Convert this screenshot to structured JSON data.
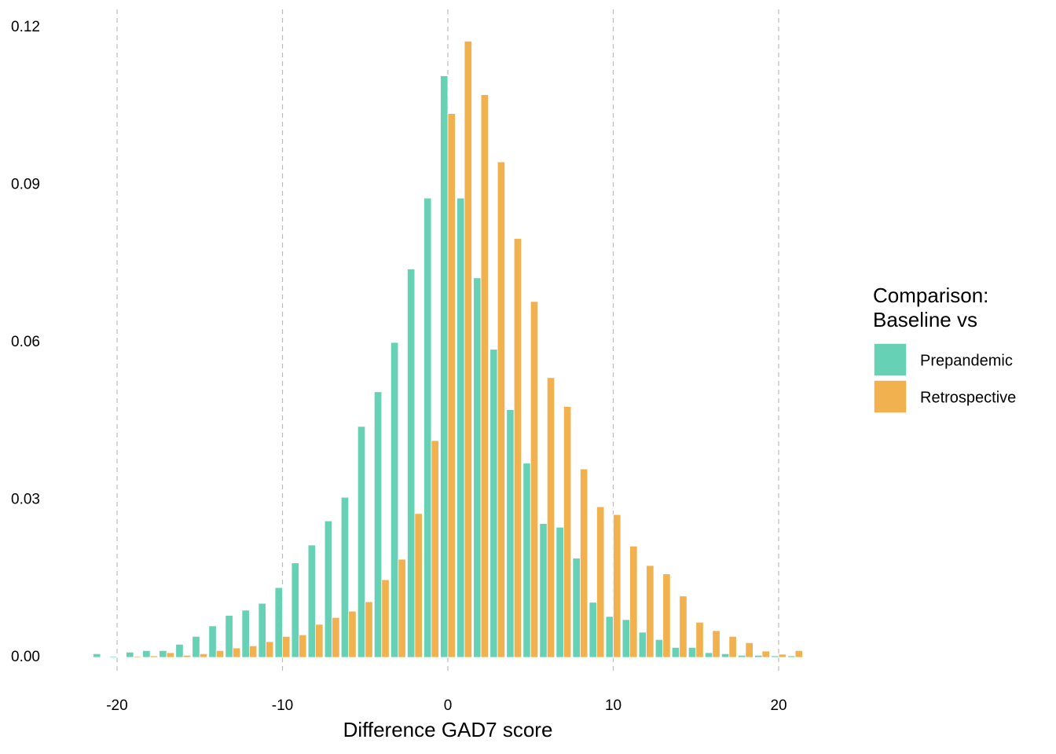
{
  "chart_data": {
    "type": "bar",
    "x_label": "Difference GAD7 score",
    "legend_title": [
      "Comparison:",
      "Baseline vs"
    ],
    "legend_position": "right",
    "x": [
      -21,
      -20,
      -19,
      -18,
      -17,
      -16,
      -15,
      -14,
      -13,
      -12,
      -11,
      -10,
      -9,
      -8,
      -7,
      -6,
      -5,
      -4,
      -3,
      -2,
      -1,
      0,
      1,
      2,
      3,
      4,
      5,
      6,
      7,
      8,
      9,
      10,
      11,
      12,
      13,
      14,
      15,
      16,
      17,
      18,
      19,
      20,
      21
    ],
    "series": [
      {
        "name": "Prepandemic",
        "color": "#66d1b5",
        "values": [
          0.0007,
          0.0002,
          0.001,
          0.0013,
          0.0013,
          0.0025,
          0.004,
          0.006,
          0.008,
          0.009,
          0.0103,
          0.0133,
          0.018,
          0.0214,
          0.026,
          0.0305,
          0.044,
          0.0506,
          0.06,
          0.074,
          0.0875,
          0.1108,
          0.0875,
          0.0723,
          0.0587,
          0.0472,
          0.037,
          0.0255,
          0.0248,
          0.0189,
          0.0105,
          0.0078,
          0.0072,
          0.0048,
          0.0034,
          0.0019,
          0.0019,
          0.0009,
          0.0007,
          0.0004,
          0.0004,
          0.0003,
          0.0003
        ]
      },
      {
        "name": "Retrospective",
        "color": "#f0b14e",
        "values": [
          0.0001,
          0.0001,
          0.0002,
          0.0003,
          0.0009,
          0.0004,
          0.0007,
          0.0013,
          0.0018,
          0.0022,
          0.003,
          0.004,
          0.0043,
          0.0063,
          0.0076,
          0.0088,
          0.0106,
          0.0148,
          0.0187,
          0.0274,
          0.0413,
          0.1036,
          0.1174,
          0.1072,
          0.0944,
          0.0798,
          0.0678,
          0.0533,
          0.0478,
          0.0359,
          0.0287,
          0.0272,
          0.0212,
          0.0175,
          0.0159,
          0.0117,
          0.0067,
          0.0051,
          0.004,
          0.0028,
          0.0012,
          0.0006,
          0.0013
        ]
      }
    ],
    "xlim": [
      -21.6,
      21.6
    ],
    "xticks": [
      -20,
      -10,
      0,
      10,
      20
    ],
    "ylim": [
      0,
      0.12
    ],
    "yticks": [
      {
        "value": 0,
        "label": "0.00"
      },
      0.03,
      0.06,
      0.09,
      0.12
    ],
    "grid": "x"
  }
}
